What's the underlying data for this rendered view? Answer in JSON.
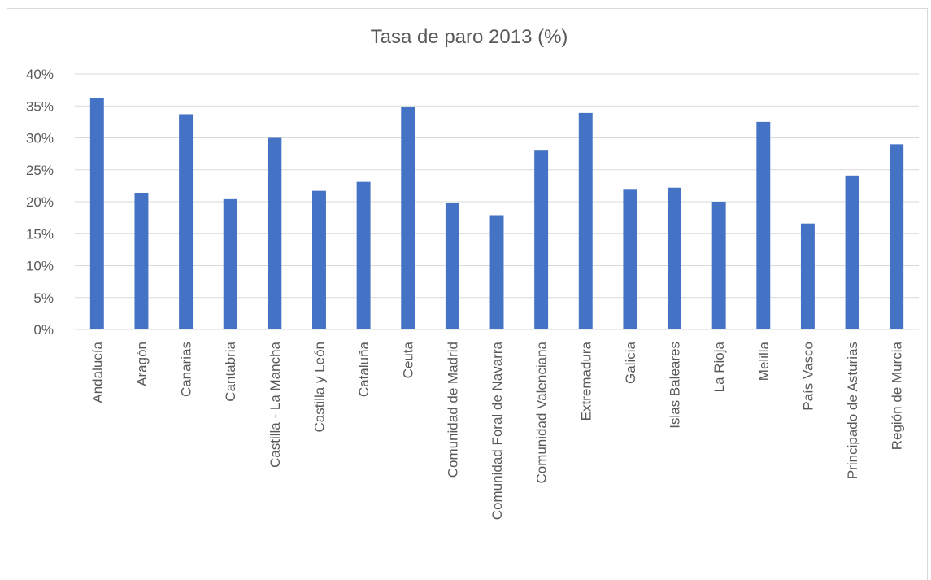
{
  "chart_data": {
    "type": "bar",
    "title": "Tasa de paro 2013 (%)",
    "xlabel": "",
    "ylabel": "",
    "categories": [
      "Andalucía",
      "Aragón",
      "Canarias",
      "Cantabria",
      "Castilla - La Mancha",
      "Castilla y León",
      "Cataluña",
      "Ceuta",
      "Comunidad de Madrid",
      "Comunidad Foral de Navarra",
      "Comunidad Valenciana",
      "Extremadura",
      "Galicia",
      "Islas Baleares",
      "La Rioja",
      "Melilla",
      "País Vasco",
      "Principado de Asturias",
      "Región de Murcia"
    ],
    "values": [
      36.2,
      21.4,
      33.7,
      20.4,
      30.0,
      21.7,
      23.1,
      34.8,
      19.8,
      17.9,
      28.0,
      33.9,
      22.0,
      22.2,
      20.0,
      32.5,
      16.6,
      24.1,
      29.0
    ],
    "ylim": [
      0,
      40
    ],
    "yticks": [
      "0%",
      "5%",
      "10%",
      "15%",
      "20%",
      "25%",
      "30%",
      "35%",
      "40%"
    ],
    "grid": true,
    "legend": "none",
    "colors": {
      "bar": "#4472C4",
      "grid": "#d9d9d9",
      "text": "#595959",
      "title": "#595959"
    }
  }
}
